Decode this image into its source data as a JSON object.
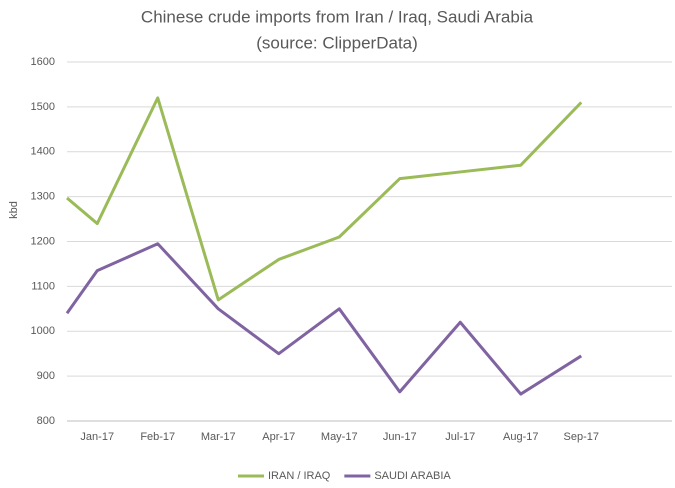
{
  "chart_data": {
    "type": "line",
    "title": "Chinese crude imports from Iran / Iraq, Saudi Arabia",
    "subtitle": "(source: ClipperData)",
    "y_label": "kbd",
    "categories": [
      null,
      "Jan-17",
      "Feb-17",
      "Mar-17",
      "Apr-17",
      "May-17",
      "Jun-17",
      "Jul-17",
      "Aug-17",
      "Sep-17"
    ],
    "series": [
      {
        "name": "IRAN / IRAQ",
        "color": "#9bbb59",
        "values": [
          1297,
          1240,
          1520,
          1070,
          1160,
          1210,
          1340,
          1355,
          1370,
          1510
        ]
      },
      {
        "name": "SAUDI ARABIA",
        "color": "#8064a2",
        "values": [
          1040,
          1135,
          1195,
          1050,
          950,
          1050,
          865,
          1020,
          860,
          945
        ]
      }
    ],
    "ylim": [
      800,
      1600
    ],
    "yticks": [
      800,
      900,
      1000,
      1100,
      1200,
      1300,
      1400,
      1500,
      1600
    ],
    "grid": true,
    "legend": "bottom"
  }
}
